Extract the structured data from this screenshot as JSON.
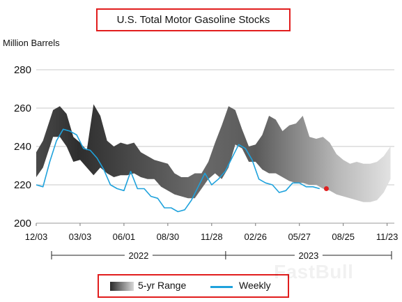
{
  "chart_data": {
    "type": "area",
    "title": "U.S. Total Motor Gasoline Stocks",
    "ylabel": "Million Barrels",
    "xlabel": "",
    "ylim": [
      200,
      280
    ],
    "y_ticks": [
      "200",
      "220",
      "240",
      "260",
      "280"
    ],
    "x_ticks": [
      "12/03",
      "03/03",
      "06/01",
      "08/30",
      "11/28",
      "02/26",
      "05/27",
      "08/25",
      "11/23"
    ],
    "year_labels": [
      "2022",
      "2023"
    ],
    "grid": true,
    "legend_position": "bottom",
    "series": [
      {
        "name": "5-yr Range",
        "x": [
          "2021-12-03",
          "2021-12-17",
          "2022-01-07",
          "2022-01-21",
          "2022-02-04",
          "2022-02-18",
          "2022-03-04",
          "2022-03-18",
          "2022-04-01",
          "2022-04-15",
          "2022-04-29",
          "2022-05-13",
          "2022-05-27",
          "2022-06-10",
          "2022-06-24",
          "2022-07-08",
          "2022-07-22",
          "2022-08-05",
          "2022-08-19",
          "2022-09-02",
          "2022-09-16",
          "2022-09-30",
          "2022-10-14",
          "2022-10-28",
          "2022-11-11",
          "2022-11-25",
          "2022-12-09",
          "2022-12-23",
          "2023-01-06",
          "2023-01-20",
          "2023-02-03",
          "2023-02-17",
          "2023-03-03",
          "2023-03-17",
          "2023-03-31",
          "2023-04-14",
          "2023-04-28",
          "2023-05-12",
          "2023-05-26",
          "2023-06-09",
          "2023-06-23",
          "2023-07-07",
          "2023-07-21",
          "2023-08-04",
          "2023-08-18",
          "2023-09-01",
          "2023-09-15",
          "2023-09-29",
          "2023-10-13",
          "2023-10-27",
          "2023-11-10",
          "2023-11-24",
          "2023-12-08"
        ],
        "low": [
          224,
          229,
          245,
          245,
          240,
          232,
          233,
          229,
          225,
          229,
          226,
          224,
          225,
          225,
          226,
          224,
          223,
          223,
          219,
          217,
          215,
          214,
          213,
          213,
          218,
          223,
          226,
          223,
          229,
          241,
          239,
          232,
          232,
          228,
          226,
          226,
          224,
          222,
          221,
          221,
          220,
          220,
          218,
          217,
          215,
          214,
          213,
          212,
          211,
          211,
          212,
          216,
          223
        ],
        "high": [
          237,
          243,
          259,
          261,
          257,
          245,
          242,
          238,
          262,
          256,
          243,
          240,
          242,
          241,
          242,
          237,
          235,
          233,
          232,
          231,
          226,
          224,
          224,
          226,
          226,
          232,
          242,
          251,
          261,
          259,
          249,
          240,
          241,
          246,
          256,
          254,
          248,
          251,
          252,
          256,
          245,
          244,
          245,
          242,
          236,
          233,
          231,
          232,
          231,
          231,
          232,
          235,
          240
        ]
      },
      {
        "name": "Weekly",
        "x": [
          "2021-12-03",
          "2021-12-17",
          "2021-12-31",
          "2022-01-14",
          "2022-01-28",
          "2022-02-11",
          "2022-02-25",
          "2022-03-11",
          "2022-03-25",
          "2022-04-08",
          "2022-04-22",
          "2022-05-06",
          "2022-05-20",
          "2022-06-03",
          "2022-06-17",
          "2022-07-01",
          "2022-07-15",
          "2022-07-29",
          "2022-08-12",
          "2022-08-26",
          "2022-09-09",
          "2022-09-23",
          "2022-10-07",
          "2022-10-21",
          "2022-11-04",
          "2022-11-18",
          "2022-12-02",
          "2022-12-16",
          "2022-12-30",
          "2023-01-13",
          "2023-01-27",
          "2023-02-10",
          "2023-02-24",
          "2023-03-10",
          "2023-03-24",
          "2023-04-07",
          "2023-04-21",
          "2023-05-05",
          "2023-05-19",
          "2023-06-02",
          "2023-06-16",
          "2023-06-30",
          "2023-07-14"
        ],
        "values": [
          220,
          219,
          232,
          243,
          249,
          248,
          246,
          239,
          238,
          234,
          228,
          220,
          218,
          217,
          227,
          218,
          218,
          214,
          213,
          208,
          208,
          206,
          207,
          212,
          219,
          226,
          220,
          223,
          227,
          234,
          241,
          239,
          233,
          223,
          221,
          220,
          216,
          217,
          221,
          221,
          219,
          219,
          218
        ]
      }
    ],
    "highlight_point": {
      "x": "2023-07-28",
      "y": 218,
      "color": "#e02020"
    }
  },
  "legend": {
    "range_label": "5-yr Range",
    "weekly_label": "Weekly"
  },
  "watermark": "FastBull"
}
